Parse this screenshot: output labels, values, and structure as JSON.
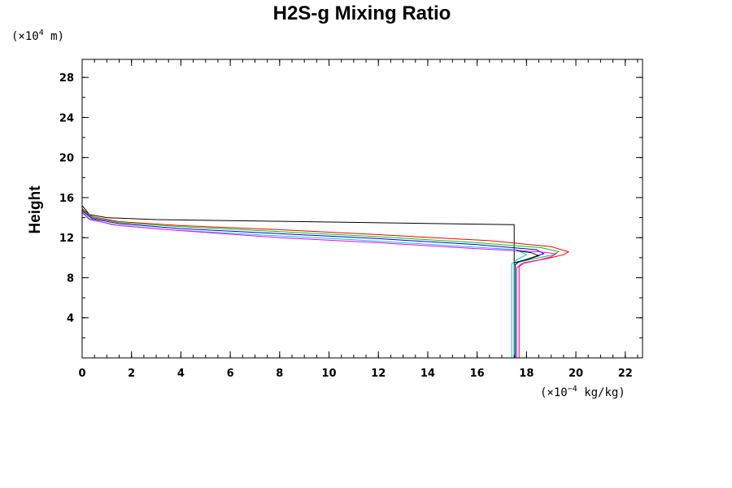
{
  "chart_data": {
    "type": "line",
    "title": "H2S-g Mixing Ratio",
    "xlabel": "",
    "ylabel": "Height",
    "x_unit_prefix": "(×10",
    "x_unit_exp": "−4",
    "x_unit_suffix": " kg/kg)",
    "y_unit_prefix": "(×10",
    "y_unit_exp": "4",
    "y_unit_suffix": " m)",
    "xlim": [
      0,
      22.7
    ],
    "ylim": [
      0,
      29.8
    ],
    "x_ticks": [
      "0",
      "2",
      "4",
      "6",
      "8",
      "10",
      "12",
      "14",
      "16",
      "18",
      "20",
      "22"
    ],
    "y_ticks": [
      "4",
      "8",
      "12",
      "16",
      "20",
      "24",
      "28"
    ],
    "x_minor_step": 0.5,
    "y_minor_step": 2,
    "grid": false,
    "legend": "none",
    "series": [
      {
        "color": "#000000",
        "points": [
          [
            17.5,
            0
          ],
          [
            17.5,
            13.3
          ],
          [
            3,
            13.8
          ],
          [
            1,
            14.0
          ],
          [
            0.3,
            14.3
          ],
          [
            0,
            15.2
          ]
        ]
      },
      {
        "color": "#00cc00",
        "points": [
          [
            17.5,
            0
          ],
          [
            17.5,
            9.2
          ],
          [
            17.6,
            9.5
          ],
          [
            18.3,
            9.9
          ],
          [
            19.1,
            10.3
          ],
          [
            19.3,
            10.6
          ],
          [
            18.6,
            11.0
          ],
          [
            16,
            11.5
          ],
          [
            12,
            12.1
          ],
          [
            8,
            12.6
          ],
          [
            4,
            13.1
          ],
          [
            1.5,
            13.5
          ],
          [
            0.4,
            14.0
          ],
          [
            0,
            14.8
          ]
        ]
      },
      {
        "color": "#ff0000",
        "points": [
          [
            17.7,
            0
          ],
          [
            17.7,
            9.1
          ],
          [
            17.9,
            9.5
          ],
          [
            18.8,
            9.9
          ],
          [
            19.5,
            10.3
          ],
          [
            19.7,
            10.6
          ],
          [
            19,
            11.1
          ],
          [
            16.5,
            11.7
          ],
          [
            12,
            12.3
          ],
          [
            8,
            12.8
          ],
          [
            4,
            13.2
          ],
          [
            1.5,
            13.6
          ],
          [
            0.4,
            14.1
          ],
          [
            0,
            14.9
          ]
        ]
      },
      {
        "color": "#0000ff",
        "points": [
          [
            17.55,
            0
          ],
          [
            17.55,
            9.3
          ],
          [
            17.7,
            9.6
          ],
          [
            18.2,
            10.0
          ],
          [
            18.7,
            10.4
          ],
          [
            18.4,
            10.8
          ],
          [
            16,
            11.3
          ],
          [
            12,
            11.9
          ],
          [
            8,
            12.4
          ],
          [
            4,
            12.9
          ],
          [
            1.5,
            13.4
          ],
          [
            0.4,
            13.9
          ],
          [
            0,
            14.7
          ]
        ]
      },
      {
        "color": "#00cccc",
        "points": [
          [
            17.4,
            0
          ],
          [
            17.4,
            9.4
          ],
          [
            17.6,
            9.8
          ],
          [
            18.0,
            10.3
          ],
          [
            17.6,
            10.8
          ],
          [
            15,
            11.2
          ],
          [
            11,
            11.8
          ],
          [
            7,
            12.3
          ],
          [
            3.5,
            12.8
          ],
          [
            1.2,
            13.3
          ],
          [
            0.3,
            13.9
          ],
          [
            0,
            14.6
          ]
        ]
      },
      {
        "color": "#ff00ff",
        "points": [
          [
            17.6,
            0
          ],
          [
            17.6,
            9.0
          ],
          [
            17.8,
            9.4
          ],
          [
            18.4,
            9.7
          ],
          [
            19.0,
            10.1
          ],
          [
            19.2,
            10.4
          ],
          [
            18.5,
            10.6
          ],
          [
            16,
            10.9
          ],
          [
            12,
            11.5
          ],
          [
            8,
            12.0
          ],
          [
            4,
            12.7
          ],
          [
            1.5,
            13.2
          ],
          [
            0.3,
            13.8
          ],
          [
            0,
            14.5
          ],
          [
            0,
            29.8
          ]
        ]
      },
      {
        "color": "#000000",
        "points": [
          [
            17.5,
            9.5
          ],
          [
            18.0,
            9.8
          ],
          [
            18.5,
            10.2
          ],
          [
            18.2,
            10.5
          ],
          [
            17.6,
            10.7
          ]
        ]
      }
    ]
  }
}
